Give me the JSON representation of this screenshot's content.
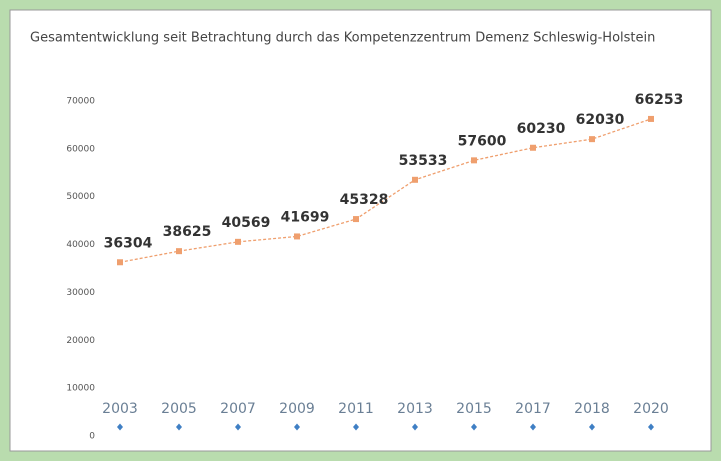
{
  "chart_data": {
    "type": "line",
    "title": "Gesamtentwicklung seit Betrachtung durch das Kompetenzzentrum Demenz Schleswig-Holstein",
    "categories": [
      "2003",
      "2005",
      "2007",
      "2009",
      "2011",
      "2013",
      "2015",
      "2017",
      "2018",
      "2020"
    ],
    "series": [
      {
        "color": "#ef9f6e",
        "values": [
          36304,
          38625,
          40569,
          41699,
          45328,
          53533,
          57600,
          60230,
          62030,
          66253
        ]
      },
      {
        "color": "#3f7fc4",
        "values": [
          0,
          0,
          0,
          0,
          0,
          0,
          0,
          0,
          0,
          0
        ]
      }
    ],
    "ylim": [
      0,
      70000
    ],
    "yticks": [
      0,
      10000,
      20000,
      30000,
      40000,
      50000,
      60000,
      70000
    ],
    "grid": false
  }
}
